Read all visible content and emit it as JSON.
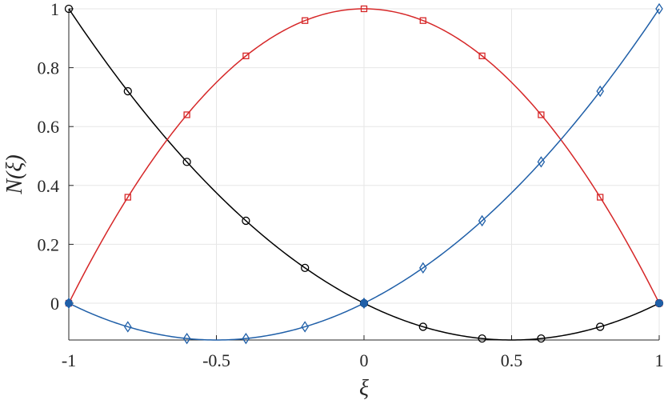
{
  "chart_data": {
    "type": "line",
    "title": "",
    "xlabel": "ξ",
    "ylabel": "N(ξ)",
    "xlim": [
      -1,
      1
    ],
    "ylim": [
      -0.125,
      1
    ],
    "grid": true,
    "x_ticks": [
      -1,
      -0.5,
      0,
      0.5,
      1
    ],
    "y_ticks": [
      0,
      0.2,
      0.4,
      0.6,
      0.8,
      1
    ],
    "x_tick_labels": [
      "-1",
      "-0.5",
      "0",
      "0.5",
      "1"
    ],
    "y_tick_labels": [
      "0",
      "0.2",
      "0.4",
      "0.6",
      "0.8",
      "1"
    ],
    "series": [
      {
        "color": "#000000",
        "marker": "circle",
        "marker_x": [
          -1,
          -0.8,
          -0.6,
          -0.4,
          -0.2,
          0,
          0.2,
          0.4,
          0.6,
          0.8,
          1
        ],
        "marker_y": [
          1,
          0.72,
          0.48,
          0.28,
          0.12,
          0,
          -0.08,
          -0.12,
          -0.12,
          -0.08,
          0
        ],
        "curve_coeffs": [
          0,
          -0.5,
          0.5
        ]
      },
      {
        "color": "#d62728",
        "marker": "square",
        "marker_x": [
          -1,
          -0.8,
          -0.6,
          -0.4,
          -0.2,
          0,
          0.2,
          0.4,
          0.6,
          0.8,
          1
        ],
        "marker_y": [
          0,
          0.36,
          0.64,
          0.84,
          0.96,
          1,
          0.96,
          0.84,
          0.64,
          0.36,
          0
        ],
        "curve_coeffs": [
          1,
          0,
          -1
        ]
      },
      {
        "color": "#1f5fa8",
        "marker": "diamond",
        "marker_x": [
          -1,
          -0.8,
          -0.6,
          -0.4,
          -0.2,
          0,
          0.2,
          0.4,
          0.6,
          0.8,
          1
        ],
        "marker_y": [
          0,
          -0.08,
          -0.12,
          -0.12,
          -0.08,
          0,
          0.12,
          0.28,
          0.48,
          0.72,
          1
        ],
        "curve_coeffs": [
          0,
          0.5,
          0.5
        ]
      }
    ],
    "nodes": {
      "color": "#1f5fa8",
      "x": [
        -1,
        0,
        1
      ],
      "y": [
        0,
        0,
        0
      ]
    }
  }
}
